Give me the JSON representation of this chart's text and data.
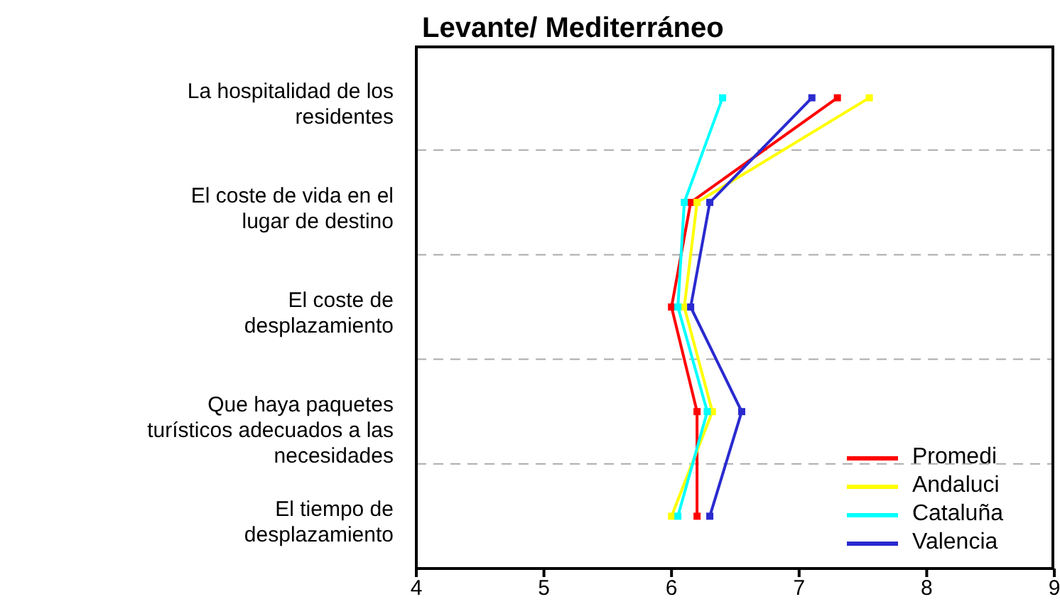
{
  "chart_data": {
    "type": "line",
    "title": "Levante/ Mediterráneo",
    "categories": [
      "La hospitalidad de los residentes",
      "El coste de vida en el lugar de destino",
      "El coste de desplazamiento",
      "Que haya paquetes turísticos adecuados a las necesidades",
      "El tiempo de desplazamiento"
    ],
    "orientation": "horizontal",
    "series": [
      {
        "name": "Promedi",
        "color": "#ff0000",
        "values": [
          7.3,
          6.15,
          6.0,
          6.2,
          6.2
        ]
      },
      {
        "name": "Andaluci",
        "color": "#ffff00",
        "values": [
          7.55,
          6.2,
          6.1,
          6.32,
          6.0
        ]
      },
      {
        "name": "Cataluña",
        "color": "#00ffff",
        "values": [
          6.4,
          6.1,
          6.05,
          6.28,
          6.05
        ]
      },
      {
        "name": "Valencia",
        "color": "#2a2ad0",
        "values": [
          7.1,
          6.3,
          6.15,
          6.55,
          6.3
        ]
      }
    ],
    "xlim": [
      4,
      9
    ],
    "xticks": [
      4,
      5,
      6,
      7,
      8,
      9
    ],
    "grid": "y",
    "legend": "bottom right",
    "marker": "square",
    "line_style": "solid"
  }
}
